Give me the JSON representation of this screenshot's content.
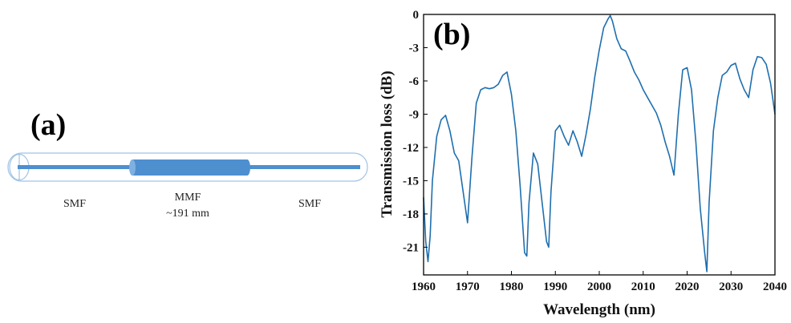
{
  "panel_a": {
    "letter": "(a)",
    "labels": {
      "left_fiber": "SMF",
      "middle_fiber": "MMF",
      "middle_length": "~191 mm",
      "right_fiber": "SMF"
    },
    "colors": {
      "fiber": "#4e8fd0",
      "outline": "#9ec3e6"
    }
  },
  "panel_b": {
    "letter": "(b)"
  },
  "chart_data": {
    "type": "line",
    "xlabel": "Wavelength (nm)",
    "ylabel": "Transmission loss (dB)",
    "xlim": [
      1960,
      2040
    ],
    "ylim": [
      -23.5,
      0
    ],
    "xticks": [
      1960,
      1970,
      1980,
      1990,
      2000,
      2010,
      2020,
      2030,
      2040
    ],
    "yticks": [
      0,
      -3,
      -6,
      -9,
      -12,
      -15,
      -18,
      -21
    ],
    "grid": false,
    "legend": "none",
    "series": [
      {
        "color": "#1f6fae",
        "x": [
          1960,
          1960.5,
          1961,
          1961.5,
          1962,
          1963,
          1964,
          1965,
          1966,
          1967,
          1968,
          1969,
          1970,
          1971,
          1972,
          1973,
          1974,
          1975,
          1976,
          1977,
          1978,
          1979,
          1980,
          1981,
          1982,
          1983,
          1983.5,
          1984,
          1985,
          1986,
          1987,
          1988,
          1988.5,
          1989,
          1990,
          1991,
          1992,
          1993,
          1994,
          1995,
          1996,
          1997,
          1998,
          1999,
          2000,
          2001,
          2002,
          2002.5,
          2003,
          2004,
          2005,
          2006,
          2007,
          2008,
          2009,
          2010,
          2011,
          2012,
          2013,
          2014,
          2015,
          2016,
          2017,
          2018,
          2019,
          2020,
          2021,
          2022,
          2023,
          2024,
          2024.5,
          2025,
          2026,
          2027,
          2028,
          2029,
          2030,
          2031,
          2032,
          2033,
          2034,
          2035,
          2036,
          2037,
          2038,
          2039,
          2040
        ],
        "y": [
          -16.5,
          -20.5,
          -22.3,
          -20,
          -15,
          -11,
          -9.5,
          -9.1,
          -10.5,
          -12.5,
          -13.2,
          -16,
          -18.8,
          -13,
          -8,
          -6.8,
          -6.6,
          -6.7,
          -6.6,
          -6.3,
          -5.5,
          -5.2,
          -7.2,
          -10.5,
          -15.5,
          -21.5,
          -21.8,
          -17,
          -12.5,
          -13.5,
          -17,
          -20.5,
          -21,
          -16,
          -10.5,
          -10,
          -11,
          -11.8,
          -10.5,
          -11.5,
          -12.8,
          -10.8,
          -8.5,
          -5.6,
          -3.2,
          -1.2,
          -0.4,
          -0.1,
          -0.6,
          -2.2,
          -3.1,
          -3.3,
          -4.2,
          -5.2,
          -5.9,
          -6.8,
          -7.5,
          -8.2,
          -8.9,
          -10,
          -11.5,
          -12.8,
          -14.5,
          -9,
          -5,
          -4.8,
          -6.8,
          -11.5,
          -17.5,
          -21.5,
          -23.2,
          -17,
          -10.5,
          -7.5,
          -5.5,
          -5.2,
          -4.6,
          -4.4,
          -5.8,
          -6.8,
          -7.5,
          -5,
          -3.8,
          -3.9,
          -4.5,
          -6.2,
          -9
        ]
      }
    ]
  }
}
